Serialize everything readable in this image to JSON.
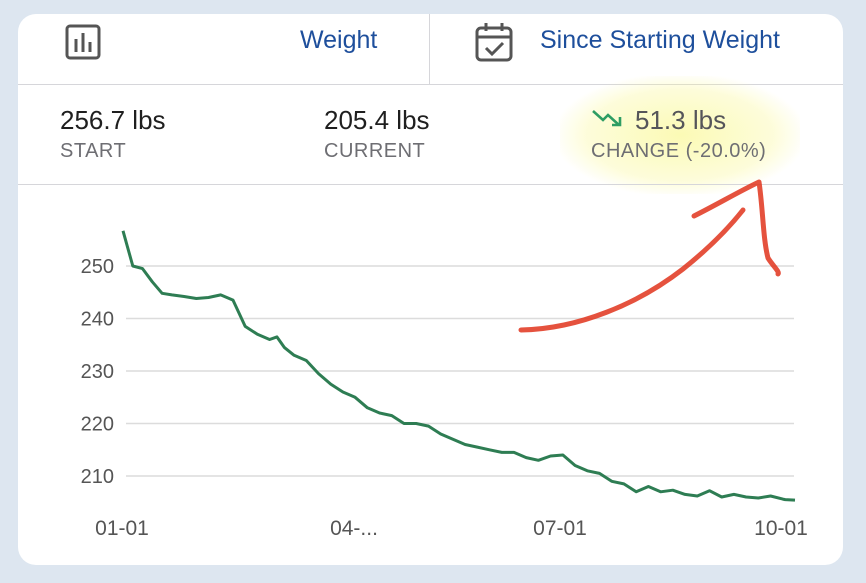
{
  "topbar": {
    "metric_label": "Weight",
    "range_label": "Since Starting Weight",
    "chart_icon": "bar-chart-icon",
    "calendar_icon": "calendar-check-icon"
  },
  "stats": {
    "start_value": "256.7 lbs",
    "start_caption": "START",
    "current_value": "205.4 lbs",
    "current_caption": "CURRENT",
    "change_value": "51.3 lbs",
    "change_caption": "CHANGE (-20.0%)",
    "change_icon": "trend-down-icon"
  },
  "colors": {
    "accent": "#1e4f9c",
    "line": "#2e7d53",
    "annotation": "#e0341c",
    "highlight": "#f8f678"
  },
  "chart_data": {
    "type": "line",
    "x_ticks": [
      "01-01",
      "04-...",
      "07-01",
      "10-01"
    ],
    "y_ticks": [
      210,
      220,
      230,
      240,
      250
    ],
    "ylim": [
      205,
      258
    ],
    "grid": true,
    "series": [
      {
        "x": [
          0,
          4,
          8,
          12,
          16,
          20,
          25,
          30,
          35,
          40,
          45,
          50,
          55,
          60,
          63,
          66,
          70,
          75,
          80,
          85,
          90,
          95,
          100,
          105,
          110,
          115,
          120,
          125,
          130,
          135,
          140,
          145,
          150,
          155,
          160,
          165,
          170,
          175,
          180,
          185,
          190,
          195,
          200,
          205,
          210,
          215,
          220,
          225,
          230,
          235,
          240,
          245,
          250,
          255,
          260,
          265,
          270,
          271,
          275
        ],
        "values": [
          256.7,
          250.0,
          249.5,
          247.0,
          244.8,
          244.5,
          244.2,
          243.8,
          244.0,
          244.5,
          243.5,
          238.5,
          237.0,
          236.0,
          236.5,
          234.5,
          233.0,
          232.0,
          229.5,
          227.5,
          226.0,
          225.0,
          223.0,
          222.0,
          221.5,
          220.0,
          220.0,
          219.5,
          218.0,
          217.0,
          216.0,
          215.5,
          215.0,
          214.5,
          214.5,
          213.5,
          213.0,
          213.8,
          214.0,
          212.0,
          211.0,
          210.5,
          209.0,
          208.5,
          207.0,
          208.0,
          207.0,
          207.3,
          206.5,
          206.2,
          207.2,
          206.0,
          206.5,
          206.0,
          205.8,
          206.2,
          205.6,
          205.5,
          205.4
        ]
      }
    ]
  }
}
